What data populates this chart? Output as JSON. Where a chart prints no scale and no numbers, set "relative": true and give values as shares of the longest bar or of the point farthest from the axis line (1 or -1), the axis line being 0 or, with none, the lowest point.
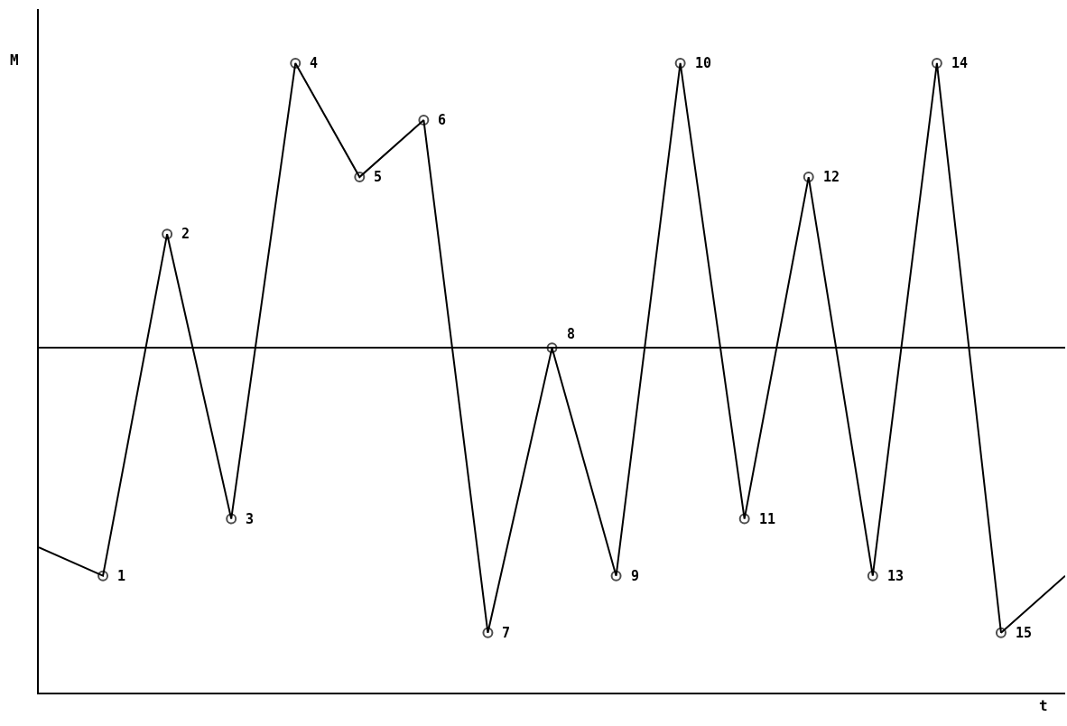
{
  "chart_data": {
    "type": "line",
    "relative": true,
    "xlabel": "t",
    "ylabel": "M",
    "categories": [
      null,
      null,
      null,
      null,
      null,
      null,
      null,
      null,
      null,
      null,
      null,
      null,
      null,
      null,
      null,
      null,
      null
    ],
    "series": [
      {
        "color": "#000000",
        "values": [
          -0.7,
          -0.8,
          0.4,
          -0.6,
          1,
          0.6,
          0.8,
          -1,
          0,
          -0.8,
          1,
          -0.6,
          0.6,
          -0.8,
          1,
          -1,
          -0.8
        ]
      }
    ],
    "annotations": [
      "1",
      "2",
      "3",
      "4",
      "5",
      "6",
      "7",
      "8",
      "9",
      "10",
      "11",
      "12",
      "13",
      "14",
      "15"
    ],
    "marker": "circle",
    "line_style": "solid"
  }
}
